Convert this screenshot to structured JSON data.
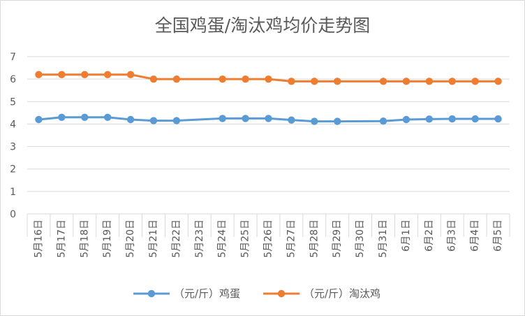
{
  "chart_data": {
    "type": "line",
    "title": "全国鸡蛋/淘汰鸡均价走势图",
    "xlabel": "",
    "ylabel": "",
    "ylim": [
      0,
      7
    ],
    "yticks": [
      "0",
      "1",
      "2",
      "3",
      "4",
      "5",
      "6",
      "7"
    ],
    "grid": true,
    "legend_position": "bottom",
    "categories": [
      "5月16日",
      "5月17日",
      "5月18日",
      "5月19日",
      "5月20日",
      "5月21日",
      "5月22日",
      "5月23日",
      "5月24日",
      "5月25日",
      "5月26日",
      "5月27日",
      "5月28日",
      "5月29日",
      "5月30日",
      "5月31日",
      "6月1日",
      "6月2日",
      "6月3日",
      "6月4日",
      "6月5日"
    ],
    "series": [
      {
        "name": "（元/斤）鸡蛋",
        "color": "#5b9bd5",
        "values": [
          4.2,
          4.3,
          4.3,
          4.3,
          4.2,
          4.15,
          4.15,
          null,
          4.25,
          4.25,
          4.25,
          4.18,
          4.12,
          4.12,
          null,
          4.13,
          4.2,
          4.22,
          4.23,
          4.23,
          4.23
        ]
      },
      {
        "name": "（元/斤）淘汰鸡",
        "color": "#ed7d31",
        "values": [
          6.2,
          6.2,
          6.2,
          6.2,
          6.2,
          6.0,
          6.0,
          null,
          6.0,
          6.0,
          6.0,
          5.9,
          5.9,
          5.9,
          null,
          5.9,
          5.9,
          5.9,
          5.9,
          5.9,
          5.9
        ]
      }
    ]
  }
}
